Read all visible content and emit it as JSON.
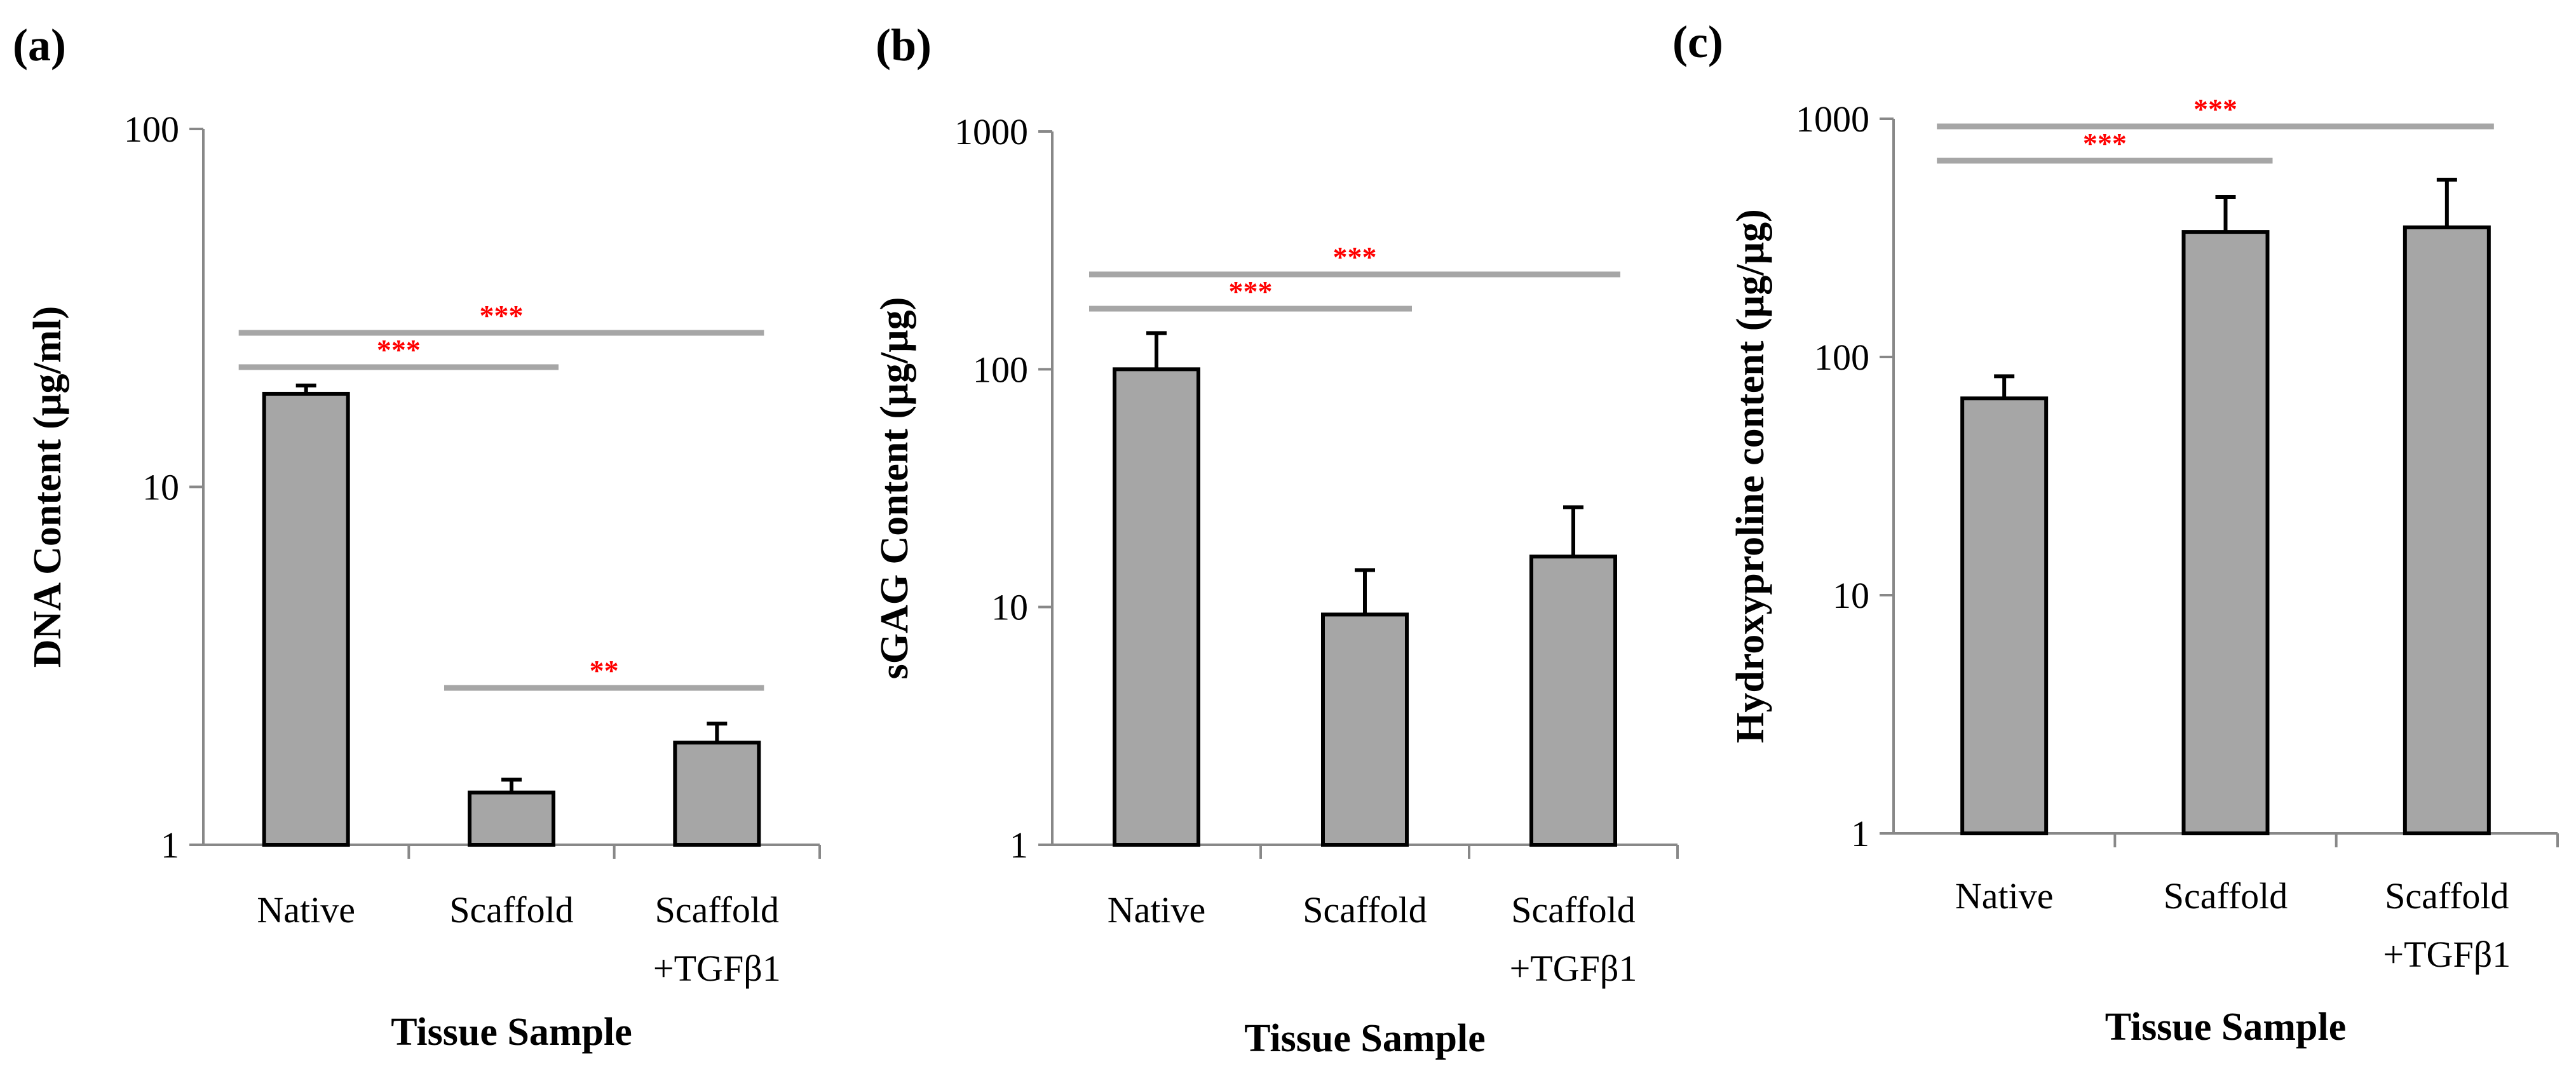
{
  "chart_data": [
    {
      "type": "bar",
      "panel_label": "(a)",
      "ylabel": "DNA Content (µg/ml)",
      "xlabel": "Tissue Sample",
      "yscale": "log",
      "ylim": [
        1,
        100
      ],
      "yticks": [
        "1",
        "10",
        "100"
      ],
      "categories": [
        [
          "Native"
        ],
        [
          "Scaffold"
        ],
        [
          "Scaffold",
          "+TGFβ1"
        ]
      ],
      "values": [
        18.2,
        1.4,
        1.93
      ],
      "errors": [
        1.0,
        0.12,
        0.25
      ],
      "significance": [
        {
          "from": 0,
          "to": 1,
          "label": "***"
        },
        {
          "from": 0,
          "to": 2,
          "label": "***"
        },
        {
          "from": 1,
          "to": 2,
          "label": "**"
        }
      ]
    },
    {
      "type": "bar",
      "panel_label": "(b)",
      "ylabel": "sGAG Content (µg/µg)",
      "xlabel": "Tissue Sample",
      "yscale": "log",
      "ylim": [
        1,
        1000
      ],
      "yticks": [
        "1",
        "10",
        "100",
        "1000"
      ],
      "categories": [
        [
          "Native"
        ],
        [
          "Scaffold"
        ],
        [
          "Scaffold",
          "+TGFβ1"
        ]
      ],
      "values": [
        100,
        9.3,
        16.3
      ],
      "errors": [
        42,
        5,
        10
      ],
      "significance": [
        {
          "from": 0,
          "to": 1,
          "label": "***"
        },
        {
          "from": 0,
          "to": 2,
          "label": "***"
        }
      ]
    },
    {
      "type": "bar",
      "panel_label": "(c)",
      "ylabel": "Hydroxyproline content (µg/µg)",
      "xlabel": "Tissue Sample",
      "yscale": "log",
      "ylim": [
        1,
        1000
      ],
      "yticks": [
        "1",
        "10",
        "100",
        "1000"
      ],
      "categories": [
        [
          "Native"
        ],
        [
          "Scaffold"
        ],
        [
          "Scaffold",
          "+TGFβ1"
        ]
      ],
      "values": [
        67,
        335,
        350
      ],
      "errors": [
        16,
        135,
        205
      ],
      "significance": [
        {
          "from": 0,
          "to": 1,
          "label": "***"
        },
        {
          "from": 0,
          "to": 2,
          "label": "***"
        }
      ]
    }
  ]
}
